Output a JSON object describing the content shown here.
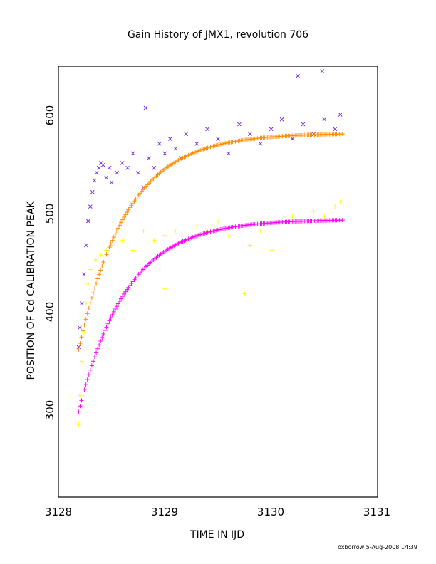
{
  "chart_data": {
    "type": "scatter",
    "title": "Gain History of JMX1, revolution 706",
    "xlabel": "TIME IN IJD",
    "ylabel": "POSITION OF Cd CALIBRATION PEAK",
    "xlim": [
      3128,
      3131
    ],
    "ylim": [
      205,
      650
    ],
    "xticks": [
      "3128",
      "3129",
      "3130",
      "3131"
    ],
    "yticks": [
      "300",
      "400",
      "500",
      "600"
    ],
    "grid": false,
    "series": [
      {
        "marker": "x",
        "color": "#7b2ee6",
        "points": [
          [
            3128.19,
            360
          ],
          [
            3128.2,
            380
          ],
          [
            3128.22,
            405
          ],
          [
            3128.24,
            435
          ],
          [
            3128.26,
            465
          ],
          [
            3128.28,
            490
          ],
          [
            3128.3,
            505
          ],
          [
            3128.32,
            520
          ],
          [
            3128.34,
            532
          ],
          [
            3128.36,
            540
          ],
          [
            3128.38,
            545
          ],
          [
            3128.4,
            550
          ],
          [
            3128.42,
            548
          ],
          [
            3128.45,
            535
          ],
          [
            3128.48,
            545
          ],
          [
            3128.5,
            530
          ],
          [
            3128.55,
            540
          ],
          [
            3128.6,
            550
          ],
          [
            3128.65,
            545
          ],
          [
            3128.7,
            560
          ],
          [
            3128.75,
            540
          ],
          [
            3128.8,
            525
          ],
          [
            3128.85,
            555
          ],
          [
            3128.9,
            545
          ],
          [
            3128.95,
            570
          ],
          [
            3129.0,
            560
          ],
          [
            3129.05,
            575
          ],
          [
            3129.1,
            565
          ],
          [
            3129.15,
            555
          ],
          [
            3129.2,
            580
          ],
          [
            3129.3,
            570
          ],
          [
            3129.4,
            585
          ],
          [
            3129.5,
            575
          ],
          [
            3129.6,
            560
          ],
          [
            3129.7,
            590
          ],
          [
            3129.8,
            580
          ],
          [
            3129.9,
            570
          ],
          [
            3130.0,
            585
          ],
          [
            3130.1,
            595
          ],
          [
            3130.2,
            575
          ],
          [
            3130.3,
            590
          ],
          [
            3130.4,
            580
          ],
          [
            3130.5,
            595
          ],
          [
            3130.6,
            585
          ],
          [
            3130.65,
            600
          ],
          [
            3130.25,
            640
          ],
          [
            3130.48,
            645
          ],
          [
            3128.82,
            607
          ]
        ]
      },
      {
        "marker": "+",
        "color": "#ffff00",
        "points": [
          [
            3128.19,
            280
          ],
          [
            3128.2,
            310
          ],
          [
            3128.22,
            345
          ],
          [
            3128.24,
            375
          ],
          [
            3128.26,
            405
          ],
          [
            3128.28,
            425
          ],
          [
            3128.3,
            440
          ],
          [
            3128.35,
            450
          ],
          [
            3128.4,
            455
          ],
          [
            3128.45,
            460
          ],
          [
            3128.5,
            465
          ],
          [
            3128.6,
            470
          ],
          [
            3128.7,
            460
          ],
          [
            3128.8,
            480
          ],
          [
            3128.9,
            470
          ],
          [
            3129.0,
            475
          ],
          [
            3129.1,
            480
          ],
          [
            3129.2,
            470
          ],
          [
            3129.3,
            485
          ],
          [
            3129.4,
            480
          ],
          [
            3129.5,
            490
          ],
          [
            3129.6,
            475
          ],
          [
            3129.7,
            485
          ],
          [
            3129.8,
            465
          ],
          [
            3129.9,
            480
          ],
          [
            3130.0,
            460
          ],
          [
            3130.1,
            490
          ],
          [
            3130.2,
            495
          ],
          [
            3130.3,
            485
          ],
          [
            3130.4,
            500
          ],
          [
            3130.5,
            495
          ],
          [
            3130.6,
            505
          ],
          [
            3130.65,
            510
          ],
          [
            3129.75,
            415
          ],
          [
            3129.0,
            420
          ]
        ]
      },
      {
        "marker": "+",
        "color": "#ff8c00",
        "x": [
          3128.19,
          3130.67
        ],
        "values": [
          357,
          580
        ]
      },
      {
        "marker": "+",
        "color": "#ff00ff",
        "x": [
          3128.19,
          3130.67
        ],
        "values": [
          293,
          491
        ]
      }
    ]
  },
  "footer": {
    "credit": "oxborrow  5-Aug-2008 14:39"
  }
}
